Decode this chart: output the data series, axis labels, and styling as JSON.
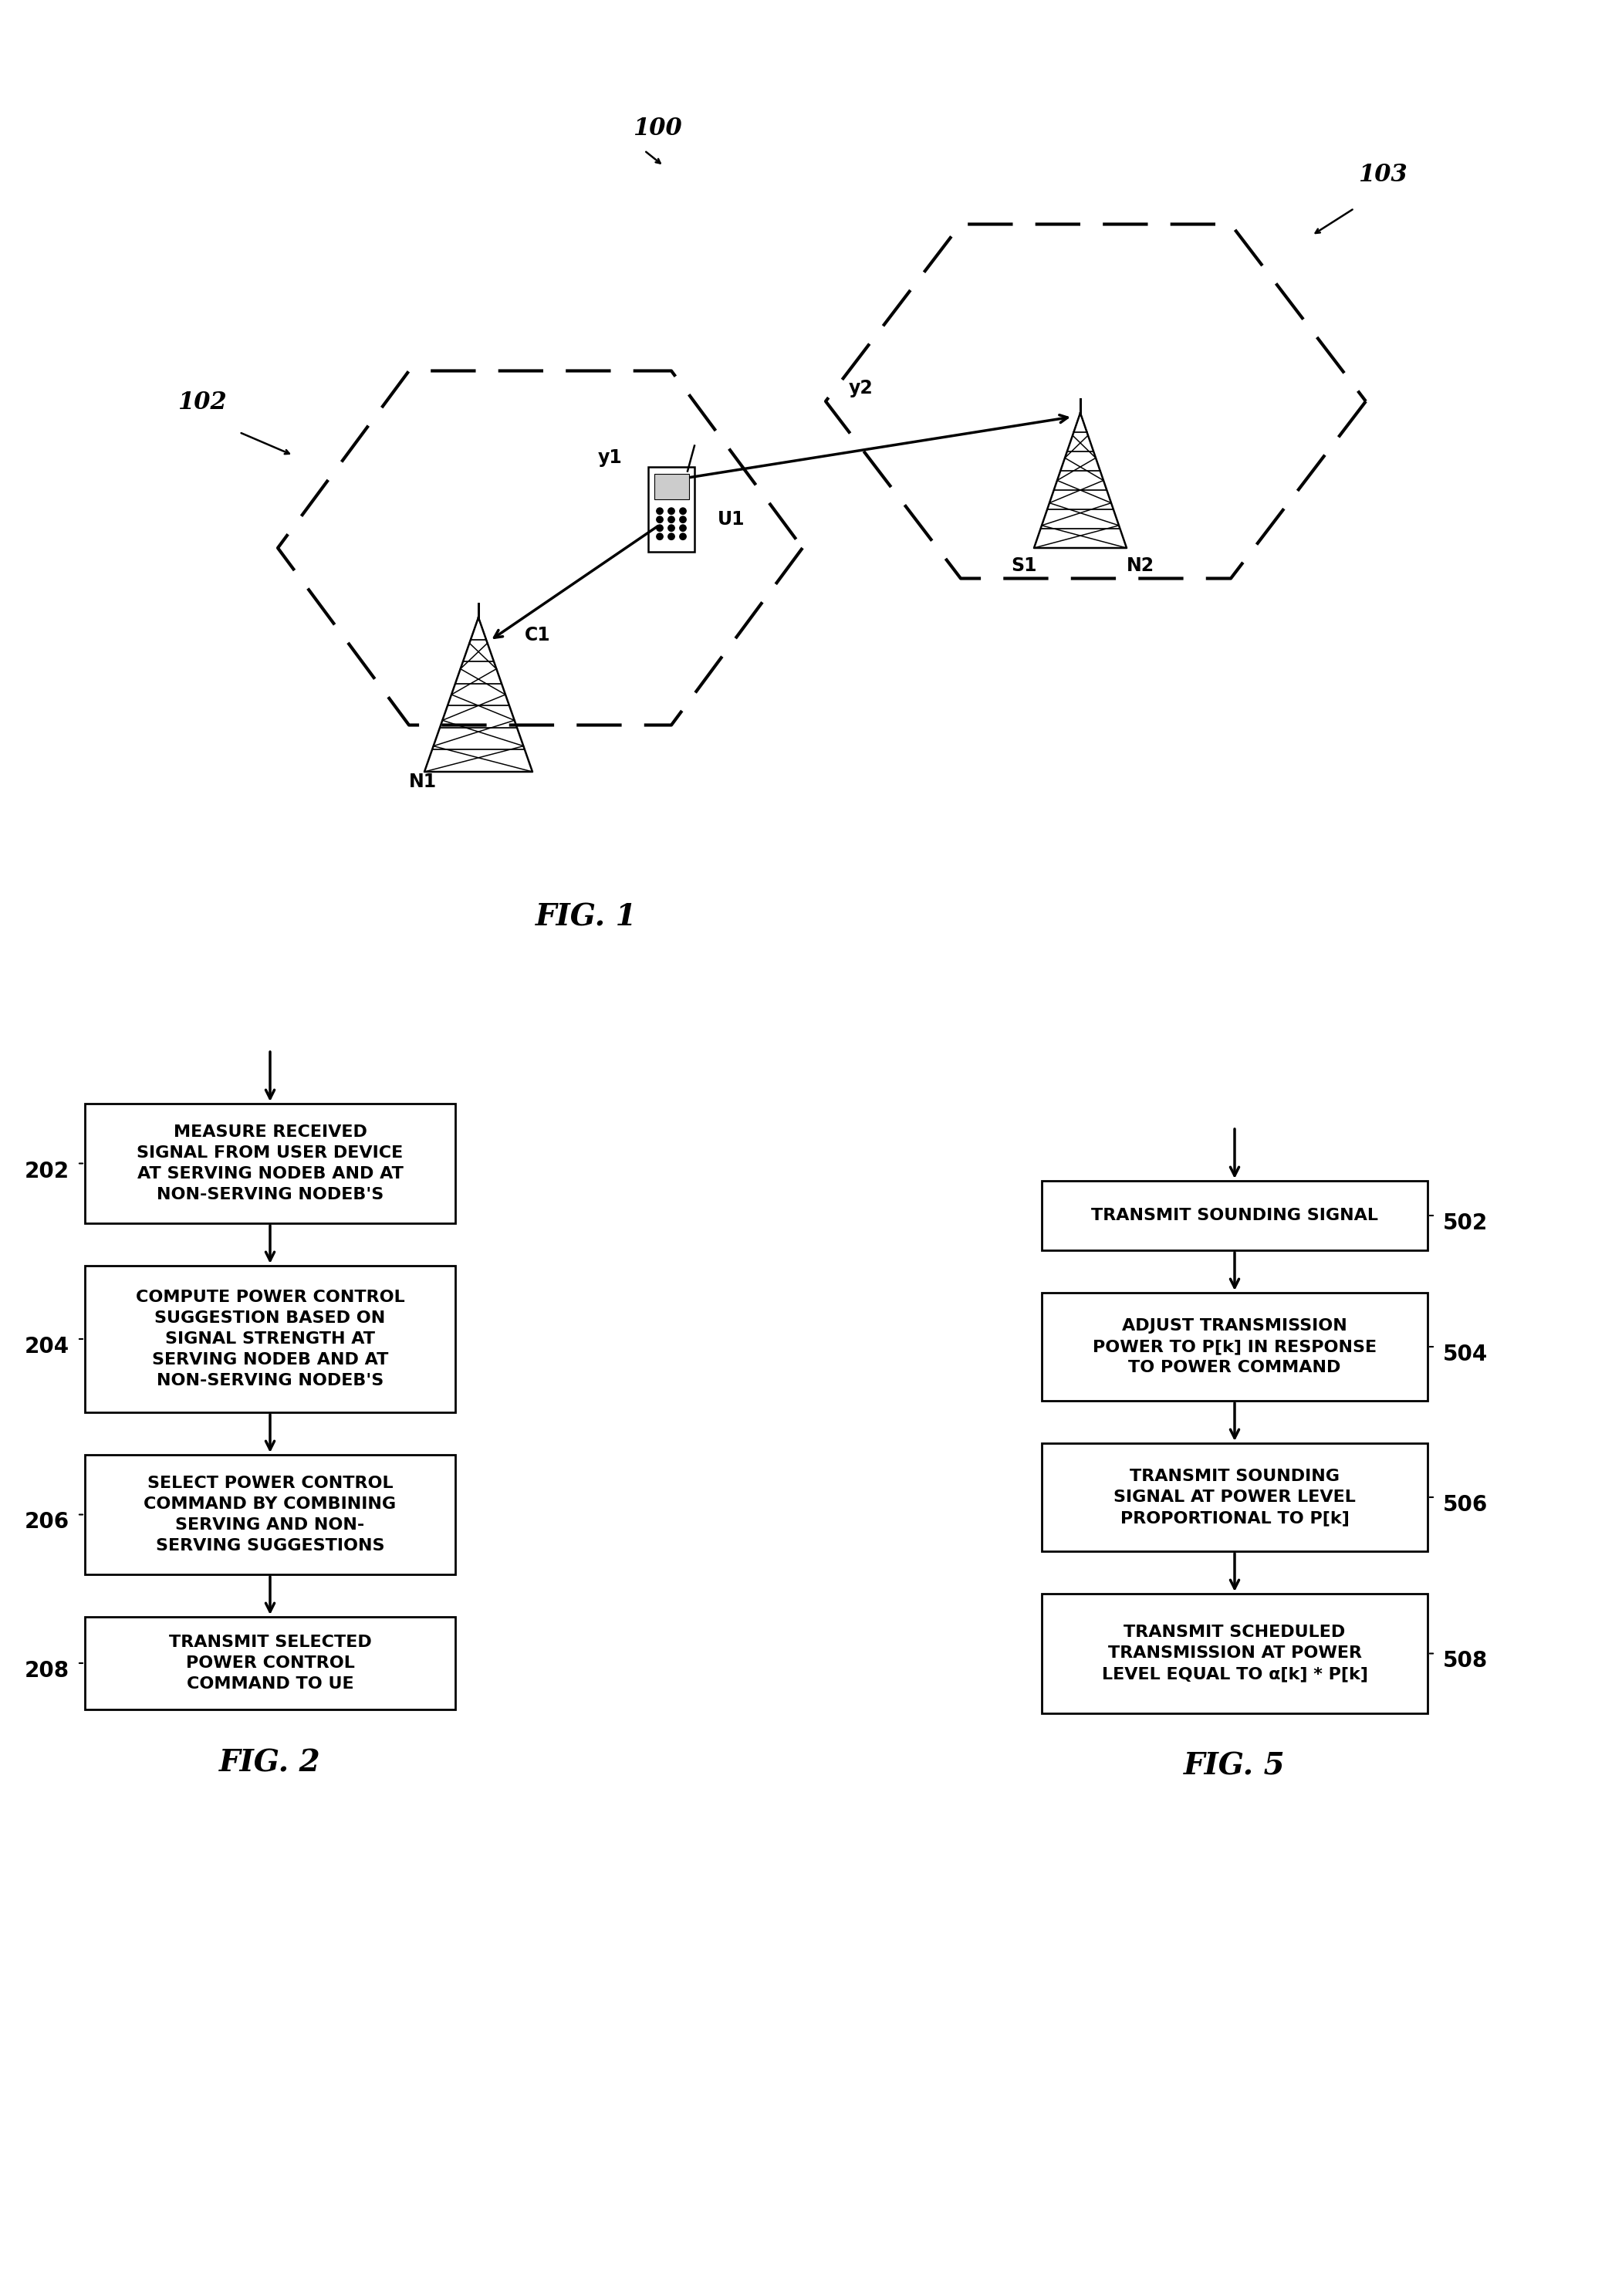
{
  "fig_width": 21.02,
  "fig_height": 29.75,
  "bg_color": "#ffffff",
  "fig1": {
    "title": "FIG. 1",
    "label_100": "100",
    "label_102": "102",
    "label_103": "103",
    "label_y1": "y1",
    "label_y2": "y2",
    "label_u1": "U1",
    "label_c1": "C1",
    "label_n1": "N1",
    "label_n2": "N2",
    "label_s1": "S1"
  },
  "fig2": {
    "title": "FIG. 2",
    "boxes": [
      {
        "id": "202",
        "text": "MEASURE RECEIVED\nSIGNAL FROM USER DEVICE\nAT SERVING NODEB AND AT\nNON-SERVING NODEB'S"
      },
      {
        "id": "204",
        "text": "COMPUTE POWER CONTROL\nSUGGESTION BASED ON\nSIGNAL STRENGTH AT\nSERVING NODEB AND AT\nNON-SERVING NODEB'S"
      },
      {
        "id": "206",
        "text": "SELECT POWER CONTROL\nCOMMAND BY COMBINING\nSERVING AND NON-\nSERVING SUGGESTIONS"
      },
      {
        "id": "208",
        "text": "TRANSMIT SELECTED\nPOWER CONTROL\nCOMMAND TO UE"
      }
    ]
  },
  "fig5": {
    "title": "FIG. 5",
    "boxes": [
      {
        "id": "502",
        "text": "TRANSMIT SOUNDING SIGNAL"
      },
      {
        "id": "504",
        "text": "ADJUST TRANSMISSION\nPOWER TO P[k] IN RESPONSE\nTO POWER COMMAND"
      },
      {
        "id": "506",
        "text": "TRANSMIT SOUNDING\nSIGNAL AT POWER LEVEL\nPROPORTIONAL TO P[k]"
      },
      {
        "id": "508",
        "text": "TRANSMIT SCHEDULED\nTRANSMISSION AT POWER\nLEVEL EQUAL TO α[k] * P[k]"
      }
    ]
  }
}
